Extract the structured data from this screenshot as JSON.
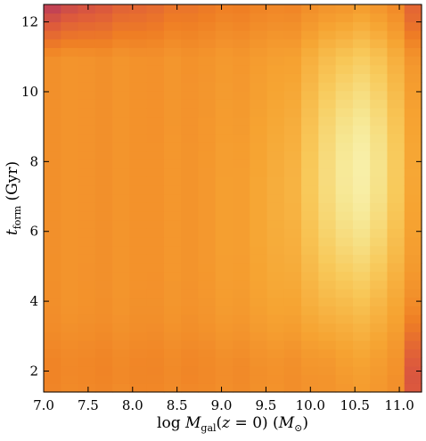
{
  "chart_data": {
    "type": "heatmap",
    "xlabel": {
      "prefix": "log ",
      "var": "M",
      "sub": "gal",
      "mid": "(",
      "var2": "z",
      "rest": " = 0) (",
      "var3": "M",
      "sub2": "⊙",
      "suffix": ")"
    },
    "ylabel": {
      "var": "t",
      "sub": "form",
      "suffix": " (Gyr)"
    },
    "xlim": [
      7.0,
      11.25
    ],
    "ylim": [
      1.4,
      12.5
    ],
    "xticks": [
      7.0,
      7.5,
      8.0,
      8.5,
      9.0,
      9.5,
      10.0,
      10.5,
      11.0
    ],
    "xtick_labels": [
      "7.0",
      "7.5",
      "8.0",
      "8.5",
      "9.0",
      "9.5",
      "10.0",
      "10.5",
      "11.0"
    ],
    "yticks": [
      2,
      4,
      6,
      8,
      10,
      12
    ],
    "ytick_labels": [
      "2",
      "4",
      "6",
      "8",
      "10",
      "12"
    ],
    "colormap": [
      "#2a0b4a",
      "#5b1a6e",
      "#8c2a6d",
      "#b83a5c",
      "#dd5a3c",
      "#ef7e24",
      "#f6a432",
      "#f8c95a",
      "#f6e58f",
      "#fbfbc6"
    ],
    "x_bins": 22,
    "y_bins": 45,
    "grid": false,
    "colorbar": false
  }
}
